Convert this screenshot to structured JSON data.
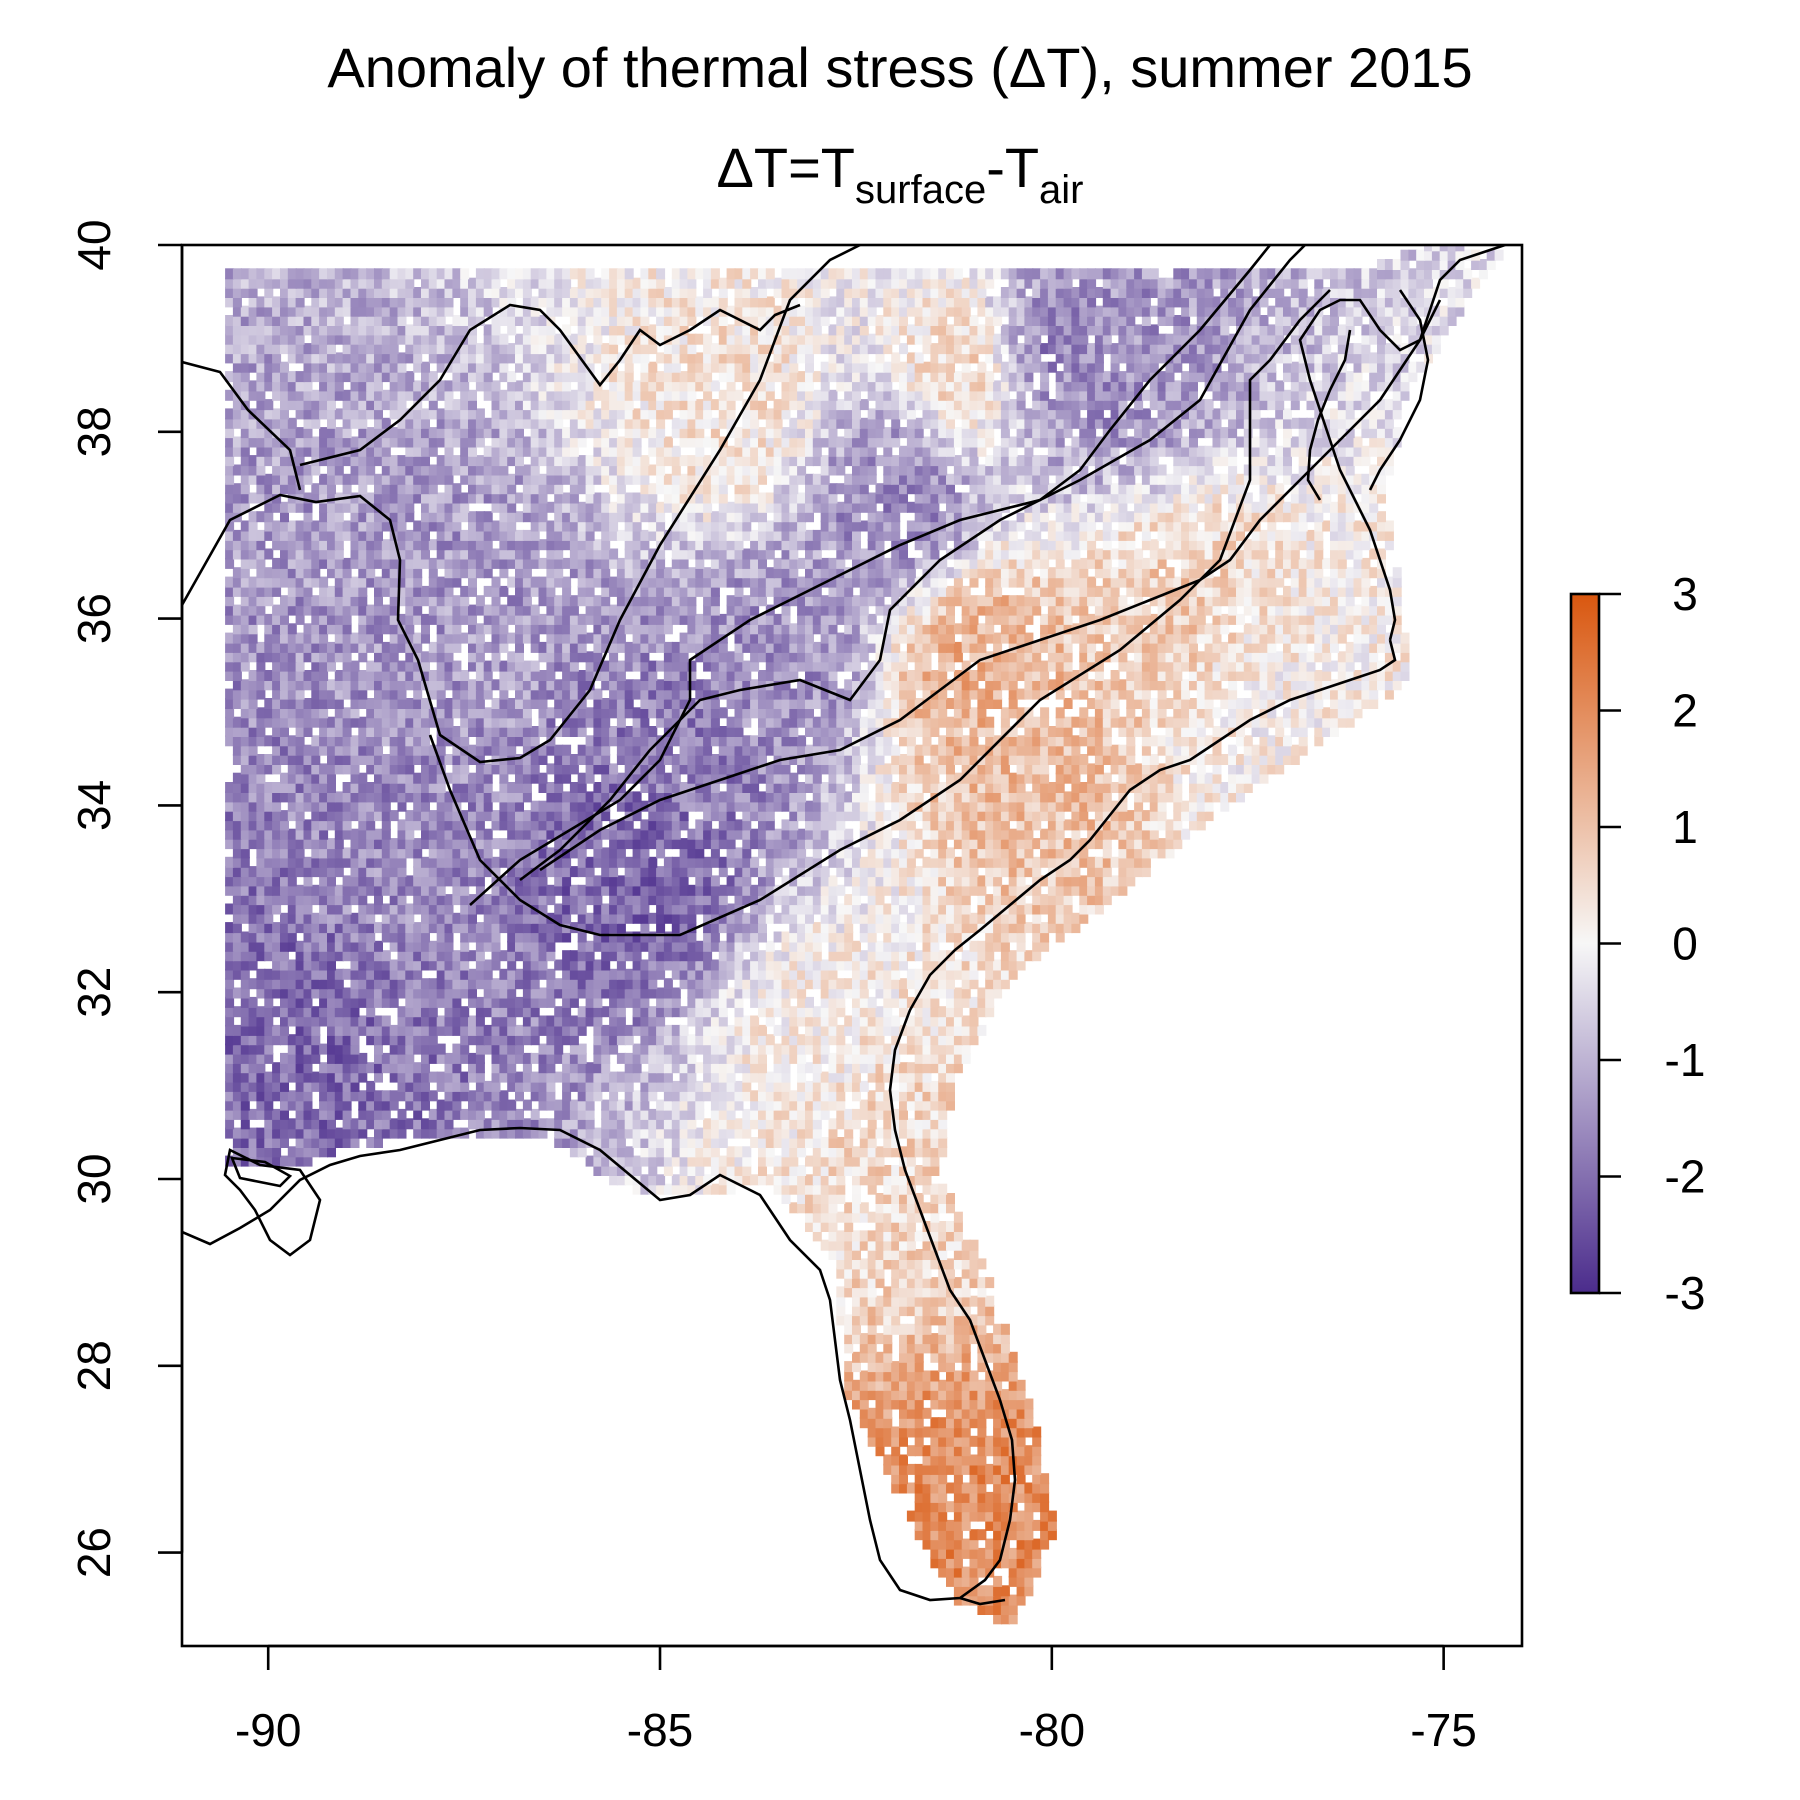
{
  "title": "Anomaly of thermal stress (ΔT), summer 2015",
  "subtitle": {
    "prefix": "ΔT=T",
    "sub1": "surface",
    "dash": "-T",
    "sub2": "air"
  },
  "chart_data": {
    "type": "heatmap",
    "variable": "ΔT anomaly",
    "xlim": [
      -91.1,
      -74.0
    ],
    "ylim": [
      25.0,
      40.0
    ],
    "x_ticks": [
      -90,
      -85,
      -80,
      -75
    ],
    "x_tick_labels": [
      "-90",
      "-85",
      "-80",
      "-75"
    ],
    "y_ticks": [
      26,
      28,
      30,
      32,
      34,
      36,
      38,
      40
    ],
    "y_tick_labels": [
      "26",
      "28",
      "30",
      "32",
      "34",
      "36",
      "38",
      "40"
    ],
    "color_scale": {
      "min": -3,
      "max": 3,
      "ticks": [
        3,
        2,
        1,
        0,
        -1,
        -2,
        -3
      ],
      "tick_labels": [
        "3",
        "2",
        "1",
        "0",
        "-1",
        "-2",
        "-3"
      ],
      "low_color": "#4b2c8c",
      "mid_color": "#f7f7f7",
      "high_color": "#d9570f"
    },
    "grid": false,
    "legend_placement": "right",
    "regional_pattern": [
      {
        "lon": -88.5,
        "lat": 33.0,
        "value": -1.6
      },
      {
        "lon": -89.3,
        "lat": 31.8,
        "value": -2.1
      },
      {
        "lon": -87.5,
        "lat": 35.8,
        "value": -1.4
      },
      {
        "lon": -85.3,
        "lat": 33.3,
        "value": -2.2
      },
      {
        "lon": -84.8,
        "lat": 34.5,
        "value": -1.8
      },
      {
        "lon": -83.5,
        "lat": 35.6,
        "value": -1.5
      },
      {
        "lon": -82.0,
        "lat": 37.2,
        "value": -1.7
      },
      {
        "lon": -80.3,
        "lat": 38.8,
        "value": -1.9
      },
      {
        "lon": -79.2,
        "lat": 38.6,
        "value": -1.5
      },
      {
        "lon": -84.2,
        "lat": 38.2,
        "value": 0.4
      },
      {
        "lon": -81.0,
        "lat": 38.7,
        "value": 0.9
      },
      {
        "lon": -81.0,
        "lat": 35.5,
        "value": 1.4
      },
      {
        "lon": -80.2,
        "lat": 34.5,
        "value": 1.1
      },
      {
        "lon": -78.5,
        "lat": 36.0,
        "value": 0.8
      },
      {
        "lon": -82.0,
        "lat": 30.5,
        "value": 0.6
      },
      {
        "lon": -81.1,
        "lat": 26.0,
        "value": 2.0
      },
      {
        "lon": -77.5,
        "lat": 35.0,
        "value": 0.1
      },
      {
        "lon": -83.0,
        "lat": 31.5,
        "value": 0.2
      }
    ]
  }
}
